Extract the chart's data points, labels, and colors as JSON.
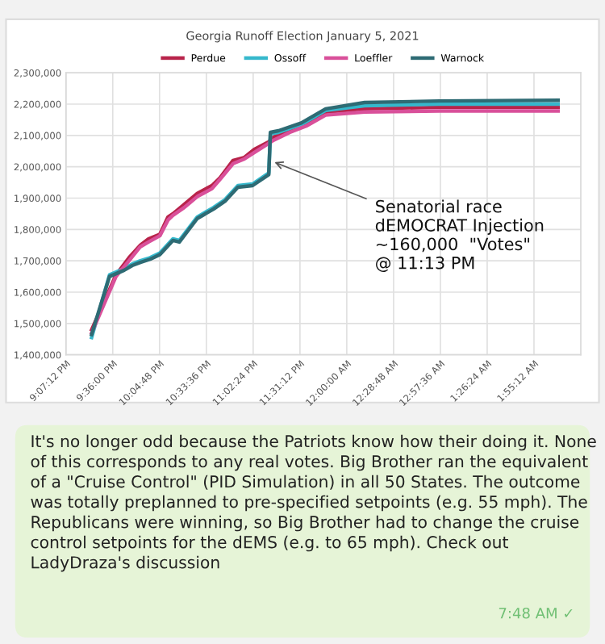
{
  "chart_data": {
    "type": "line",
    "title": "Georgia Runoff Election January 5, 2021",
    "series": [
      {
        "name": "Perdue",
        "color": "#b8234a",
        "x": [
          "2021-01-05T21:23",
          "2021-01-05T21:38",
          "2021-01-05T21:46",
          "2021-01-05T21:53",
          "2021-01-05T21:58",
          "2021-01-05T22:05",
          "2021-01-05T22:10",
          "2021-01-05T22:13",
          "2021-01-05T22:20",
          "2021-01-05T22:28",
          "2021-01-05T22:37",
          "2021-01-05T22:42",
          "2021-01-05T22:50",
          "2021-01-05T22:57",
          "2021-01-05T23:03",
          "2021-01-05T23:12",
          "2021-01-05T23:15",
          "2021-01-05T23:25",
          "2021-01-05T23:35",
          "2021-01-05T23:47",
          "2021-01-06T00:11",
          "2021-01-06T00:57",
          "2021-01-06T02:10"
        ],
        "values": [
          1480000,
          1655000,
          1710000,
          1750000,
          1770000,
          1785000,
          1840000,
          1850000,
          1880000,
          1915000,
          1940000,
          1965000,
          2020000,
          2030000,
          2055000,
          2080000,
          2095000,
          2120000,
          2140000,
          2175000,
          2185000,
          2190000,
          2190000
        ]
      },
      {
        "name": "Ossoff",
        "color": "#35b8cc",
        "x": [
          "2021-01-05T21:23",
          "2021-01-05T21:34",
          "2021-01-05T21:43",
          "2021-01-05T21:48",
          "2021-01-05T21:53",
          "2021-01-05T21:59",
          "2021-01-05T22:05",
          "2021-01-05T22:13",
          "2021-01-05T22:17",
          "2021-01-05T22:28",
          "2021-01-05T22:38",
          "2021-01-05T22:45",
          "2021-01-05T22:53",
          "2021-01-05T23:02",
          "2021-01-05T23:12",
          "2021-01-05T23:13",
          "2021-01-05T23:18",
          "2021-01-05T23:32",
          "2021-01-05T23:47",
          "2021-01-06T00:11",
          "2021-01-06T00:57",
          "2021-01-06T02:10"
        ],
        "values": [
          1455000,
          1655000,
          1675000,
          1690000,
          1700000,
          1710000,
          1725000,
          1770000,
          1765000,
          1840000,
          1870000,
          1895000,
          1940000,
          1945000,
          1980000,
          2105000,
          2110000,
          2135000,
          2180000,
          2195000,
          2200000,
          2200000
        ]
      },
      {
        "name": "Loeffler",
        "color": "#d9509a",
        "x": [
          "2021-01-05T21:23",
          "2021-01-05T21:38",
          "2021-01-05T21:46",
          "2021-01-05T21:53",
          "2021-01-05T21:58",
          "2021-01-05T22:05",
          "2021-01-05T22:10",
          "2021-01-05T22:13",
          "2021-01-05T22:20",
          "2021-01-05T22:28",
          "2021-01-05T22:37",
          "2021-01-05T22:42",
          "2021-01-05T22:50",
          "2021-01-05T22:57",
          "2021-01-05T23:03",
          "2021-01-05T23:12",
          "2021-01-05T23:15",
          "2021-01-05T23:25",
          "2021-01-05T23:35",
          "2021-01-05T23:47",
          "2021-01-06T00:11",
          "2021-01-06T00:57",
          "2021-01-06T02:10"
        ],
        "values": [
          1470000,
          1650000,
          1700000,
          1745000,
          1760000,
          1780000,
          1830000,
          1845000,
          1870000,
          1905000,
          1930000,
          1960000,
          2010000,
          2025000,
          2045000,
          2075000,
          2085000,
          2110000,
          2130000,
          2165000,
          2175000,
          2178000,
          2178000
        ]
      },
      {
        "name": "Warnock",
        "color": "#2e6b74",
        "x": [
          "2021-01-05T21:23",
          "2021-01-05T21:34",
          "2021-01-05T21:43",
          "2021-01-05T21:48",
          "2021-01-05T21:53",
          "2021-01-05T21:59",
          "2021-01-05T22:05",
          "2021-01-05T22:13",
          "2021-01-05T22:17",
          "2021-01-05T22:28",
          "2021-01-05T22:38",
          "2021-01-05T22:45",
          "2021-01-05T22:53",
          "2021-01-05T23:02",
          "2021-01-05T23:12",
          "2021-01-05T23:13",
          "2021-01-05T23:18",
          "2021-01-05T23:32",
          "2021-01-05T23:47",
          "2021-01-06T00:11",
          "2021-01-06T00:57",
          "2021-01-06T02:10"
        ],
        "values": [
          1465000,
          1650000,
          1670000,
          1685000,
          1695000,
          1705000,
          1720000,
          1765000,
          1760000,
          1835000,
          1865000,
          1890000,
          1935000,
          1940000,
          1975000,
          2110000,
          2115000,
          2140000,
          2185000,
          2205000,
          2210000,
          2212000
        ]
      }
    ],
    "xlim": [
      "2021-01-05T21:07:12",
      "2021-01-06T02:24"
    ],
    "xticks": [
      {
        "value": "2021-01-05T21:07:12",
        "label": "9:07:12 PM"
      },
      {
        "value": "2021-01-05T21:36",
        "label": "9:36:00 PM"
      },
      {
        "value": "2021-01-05T22:04:48",
        "label": "10:04:48 PM"
      },
      {
        "value": "2021-01-05T22:33:36",
        "label": "10:33:36 PM"
      },
      {
        "value": "2021-01-05T23:02:24",
        "label": "11:02:24 PM"
      },
      {
        "value": "2021-01-05T23:31:12",
        "label": "11:31:12 PM"
      },
      {
        "value": "2021-01-06T00:00",
        "label": "12:00:00 AM"
      },
      {
        "value": "2021-01-06T00:28:48",
        "label": "12:28:48 AM"
      },
      {
        "value": "2021-01-06T00:57:36",
        "label": "12:57:36 AM"
      },
      {
        "value": "2021-01-06T01:26:24",
        "label": "1:26:24 AM"
      },
      {
        "value": "2021-01-06T01:55:12",
        "label": "1:55:12 AM"
      }
    ],
    "ylim": [
      1400000,
      2300000
    ],
    "yticks": [
      {
        "value": 1400000,
        "label": "1,400,000"
      },
      {
        "value": 1500000,
        "label": "1,500,000"
      },
      {
        "value": 1600000,
        "label": "1,600,000"
      },
      {
        "value": 1700000,
        "label": "1,700,000"
      },
      {
        "value": 1800000,
        "label": "1,800,000"
      },
      {
        "value": 1900000,
        "label": "1,900,000"
      },
      {
        "value": 2000000,
        "label": "2,000,000"
      },
      {
        "value": 2100000,
        "label": "2,100,000"
      },
      {
        "value": 2200000,
        "label": "2,200,000"
      },
      {
        "value": 2300000,
        "label": "2,300,000"
      }
    ],
    "grid": true,
    "legend": "top",
    "line_style": "solid",
    "annotations": [
      {
        "text": "Senatorial race\ndEMOCRAT Injection\n~160,000  \"Votes\"\n@ 11:13 PM",
        "x": "2021-01-05T23:13",
        "y": 2020000
      },
      "It's no longer odd because the Patriots know how their doing it. None of this corresponds to any real votes. Big Brother ran the equivalent of a \"Cruise Control\" (PID Simulation) in all 50 States. The outcome was totally preplanned to pre-specified setpoints (e.g. 55 mph). The Republicans were winning, so Big Brother had to change the cruise control setpoints for the dEMS (e.g. to 65 mph). Check out LadyDraza's discussion",
      "7:48 AM ✓"
    ]
  }
}
